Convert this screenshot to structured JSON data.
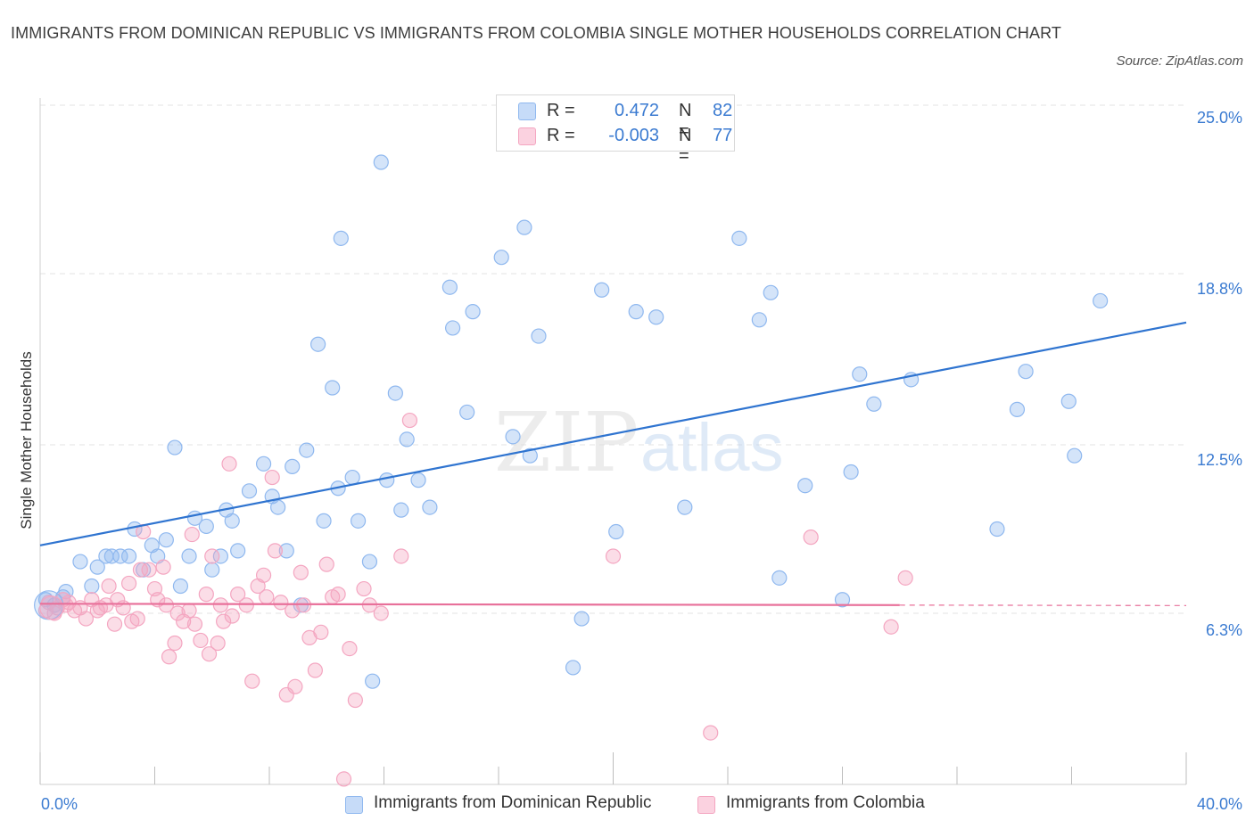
{
  "title": "IMMIGRANTS FROM DOMINICAN REPUBLIC VS IMMIGRANTS FROM COLOMBIA SINGLE MOTHER HOUSEHOLDS CORRELATION CHART",
  "source": "Source: ZipAtlas.com",
  "watermark": {
    "zip": "ZIP",
    "atlas": "atlas"
  },
  "legend": {
    "r_label": "R = ",
    "n_label": "N = ",
    "rows": [
      {
        "series": "Immigrants from Dominican Republic",
        "r": "0.472",
        "n": "82"
      },
      {
        "series": "Immigrants from Colombia",
        "r": "-0.003",
        "n": "77"
      }
    ]
  },
  "chart_data": {
    "type": "scatter",
    "title": "IMMIGRANTS FROM DOMINICAN REPUBLIC VS IMMIGRANTS FROM COLOMBIA SINGLE MOTHER HOUSEHOLDS CORRELATION CHART",
    "xlabel": "",
    "ylabel": "Single Mother Households",
    "xlim": [
      0,
      40
    ],
    "ylim": [
      0,
      25
    ],
    "x_tick_labels": [
      "0.0%",
      "40.0%"
    ],
    "y_tick_labels": [
      "25.0%",
      "18.8%",
      "12.5%",
      "6.3%"
    ],
    "y_ticks": [
      25.0,
      18.8,
      12.5,
      6.3
    ],
    "grid": true,
    "legend_position": "top-center",
    "series": [
      {
        "name": "Immigrants from Dominican Republic",
        "color": "#8fb8ef",
        "line_color": "#2f74d0",
        "trend": {
          "x": [
            0,
            40
          ],
          "y": [
            8.8,
            17.0
          ]
        },
        "points": [
          [
            0.2,
            6.8
          ],
          [
            0.5,
            6.6
          ],
          [
            0.8,
            6.9
          ],
          [
            0.9,
            7.1
          ],
          [
            1.4,
            8.2
          ],
          [
            1.8,
            7.3
          ],
          [
            2.0,
            8.0
          ],
          [
            2.3,
            8.4
          ],
          [
            2.5,
            8.4
          ],
          [
            2.8,
            8.4
          ],
          [
            3.1,
            8.4
          ],
          [
            3.3,
            9.4
          ],
          [
            3.6,
            7.9
          ],
          [
            3.9,
            8.8
          ],
          [
            4.1,
            8.4
          ],
          [
            4.4,
            9.0
          ],
          [
            4.7,
            12.4
          ],
          [
            4.9,
            7.3
          ],
          [
            5.2,
            8.4
          ],
          [
            5.4,
            9.8
          ],
          [
            5.8,
            9.5
          ],
          [
            6.0,
            7.9
          ],
          [
            6.3,
            8.4
          ],
          [
            6.5,
            10.1
          ],
          [
            6.7,
            9.7
          ],
          [
            6.9,
            8.6
          ],
          [
            7.3,
            10.8
          ],
          [
            7.8,
            11.8
          ],
          [
            8.1,
            10.6
          ],
          [
            8.3,
            10.2
          ],
          [
            8.6,
            8.6
          ],
          [
            8.8,
            11.7
          ],
          [
            9.1,
            6.6
          ],
          [
            9.3,
            12.3
          ],
          [
            9.7,
            16.2
          ],
          [
            9.9,
            9.7
          ],
          [
            10.2,
            14.6
          ],
          [
            10.4,
            10.9
          ],
          [
            10.5,
            20.1
          ],
          [
            10.9,
            11.3
          ],
          [
            11.1,
            9.7
          ],
          [
            11.5,
            8.2
          ],
          [
            11.6,
            3.8
          ],
          [
            11.9,
            22.9
          ],
          [
            12.1,
            11.2
          ],
          [
            12.4,
            14.4
          ],
          [
            12.6,
            10.1
          ],
          [
            12.8,
            12.7
          ],
          [
            13.2,
            11.2
          ],
          [
            13.6,
            10.2
          ],
          [
            14.3,
            18.3
          ],
          [
            14.4,
            16.8
          ],
          [
            14.9,
            13.7
          ],
          [
            15.1,
            17.4
          ],
          [
            16.1,
            19.4
          ],
          [
            16.5,
            12.8
          ],
          [
            16.9,
            20.5
          ],
          [
            17.1,
            12.1
          ],
          [
            17.4,
            16.5
          ],
          [
            18.6,
            4.3
          ],
          [
            18.9,
            6.1
          ],
          [
            19.6,
            18.2
          ],
          [
            20.1,
            9.3
          ],
          [
            20.8,
            17.4
          ],
          [
            21.5,
            17.2
          ],
          [
            22.5,
            10.2
          ],
          [
            24.4,
            20.1
          ],
          [
            25.1,
            17.1
          ],
          [
            25.5,
            18.1
          ],
          [
            25.8,
            7.6
          ],
          [
            26.7,
            11.0
          ],
          [
            28.0,
            6.8
          ],
          [
            28.3,
            11.5
          ],
          [
            28.6,
            15.1
          ],
          [
            29.1,
            14.0
          ],
          [
            30.4,
            14.9
          ],
          [
            33.4,
            9.4
          ],
          [
            34.1,
            13.8
          ],
          [
            34.4,
            15.2
          ],
          [
            35.9,
            14.1
          ],
          [
            36.1,
            12.1
          ],
          [
            37.0,
            17.8
          ]
        ]
      },
      {
        "name": "Immigrants from Colombia",
        "color": "#f4a6c1",
        "line_color": "#e8709a",
        "trend": {
          "x": [
            0,
            30
          ],
          "y": [
            6.65,
            6.6
          ]
        },
        "points": [
          [
            0.2,
            6.4
          ],
          [
            0.3,
            6.7
          ],
          [
            0.5,
            6.3
          ],
          [
            0.6,
            6.5
          ],
          [
            0.8,
            6.8
          ],
          [
            0.9,
            6.6
          ],
          [
            1.0,
            6.7
          ],
          [
            1.2,
            6.4
          ],
          [
            1.4,
            6.5
          ],
          [
            1.6,
            6.1
          ],
          [
            1.8,
            6.8
          ],
          [
            2.0,
            6.4
          ],
          [
            2.1,
            6.5
          ],
          [
            2.3,
            6.6
          ],
          [
            2.4,
            7.3
          ],
          [
            2.6,
            5.9
          ],
          [
            2.7,
            6.8
          ],
          [
            2.9,
            6.5
          ],
          [
            3.1,
            7.4
          ],
          [
            3.2,
            6.0
          ],
          [
            3.4,
            6.1
          ],
          [
            3.5,
            7.9
          ],
          [
            3.6,
            9.3
          ],
          [
            3.8,
            7.9
          ],
          [
            4.0,
            7.2
          ],
          [
            4.1,
            6.8
          ],
          [
            4.3,
            8.0
          ],
          [
            4.4,
            6.6
          ],
          [
            4.5,
            4.7
          ],
          [
            4.7,
            5.2
          ],
          [
            4.8,
            6.3
          ],
          [
            5.0,
            6.0
          ],
          [
            5.2,
            6.4
          ],
          [
            5.3,
            9.2
          ],
          [
            5.4,
            5.9
          ],
          [
            5.6,
            5.3
          ],
          [
            5.8,
            7.0
          ],
          [
            5.9,
            4.8
          ],
          [
            6.0,
            8.4
          ],
          [
            6.2,
            5.2
          ],
          [
            6.3,
            6.6
          ],
          [
            6.4,
            6.0
          ],
          [
            6.6,
            11.8
          ],
          [
            6.7,
            6.2
          ],
          [
            6.9,
            7.0
          ],
          [
            7.2,
            6.6
          ],
          [
            7.4,
            3.8
          ],
          [
            7.6,
            7.3
          ],
          [
            7.8,
            7.7
          ],
          [
            7.9,
            6.9
          ],
          [
            8.1,
            11.3
          ],
          [
            8.2,
            8.6
          ],
          [
            8.4,
            6.7
          ],
          [
            8.6,
            3.3
          ],
          [
            8.8,
            6.4
          ],
          [
            8.9,
            3.6
          ],
          [
            9.1,
            7.8
          ],
          [
            9.2,
            6.6
          ],
          [
            9.4,
            5.4
          ],
          [
            9.6,
            4.2
          ],
          [
            9.8,
            5.6
          ],
          [
            10.0,
            8.1
          ],
          [
            10.2,
            6.9
          ],
          [
            10.4,
            7.0
          ],
          [
            10.6,
            0.2
          ],
          [
            10.8,
            5.0
          ],
          [
            11.0,
            3.1
          ],
          [
            11.3,
            7.2
          ],
          [
            11.5,
            6.6
          ],
          [
            11.9,
            6.3
          ],
          [
            12.6,
            8.4
          ],
          [
            12.9,
            13.4
          ],
          [
            20.0,
            8.4
          ],
          [
            23.4,
            1.9
          ],
          [
            26.9,
            9.1
          ],
          [
            29.7,
            5.8
          ],
          [
            30.2,
            7.6
          ]
        ]
      }
    ]
  },
  "colors": {
    "accent": "#3b7bd1",
    "grid": "#e3e3e3",
    "axis": "#cfcfcf"
  }
}
